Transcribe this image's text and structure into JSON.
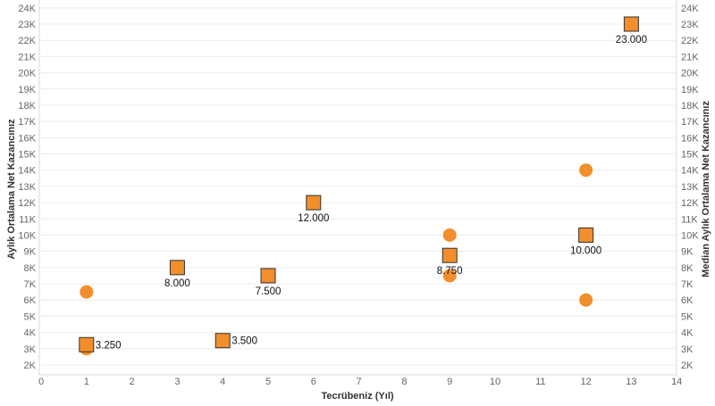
{
  "chart_data": {
    "type": "scatter",
    "xlabel": "Tecrübeniz (Yıl)",
    "ylabel_left": "Aylık Ortalama Net Kazancınız",
    "ylabel_right": "Median Aylık Ortalama Net Kazancınız",
    "xlim": [
      0,
      14
    ],
    "ylim": [
      1500,
      24000
    ],
    "x_ticks": [
      0,
      1,
      2,
      3,
      4,
      5,
      6,
      7,
      8,
      9,
      10,
      11,
      12,
      13,
      14
    ],
    "y_ticks": [
      {
        "value": 2000,
        "label": "2K"
      },
      {
        "value": 3000,
        "label": "3K"
      },
      {
        "value": 4000,
        "label": "4K"
      },
      {
        "value": 5000,
        "label": "5K"
      },
      {
        "value": 6000,
        "label": "6K"
      },
      {
        "value": 7000,
        "label": "7K"
      },
      {
        "value": 8000,
        "label": "8K"
      },
      {
        "value": 9000,
        "label": "9K"
      },
      {
        "value": 10000,
        "label": "10K"
      },
      {
        "value": 11000,
        "label": "11K"
      },
      {
        "value": 12000,
        "label": "12K"
      },
      {
        "value": 13000,
        "label": "13K"
      },
      {
        "value": 14000,
        "label": "14K"
      },
      {
        "value": 15000,
        "label": "15K"
      },
      {
        "value": 16000,
        "label": "16K"
      },
      {
        "value": 17000,
        "label": "17K"
      },
      {
        "value": 18000,
        "label": "18K"
      },
      {
        "value": 19000,
        "label": "19K"
      },
      {
        "value": 20000,
        "label": "20K"
      },
      {
        "value": 21000,
        "label": "21K"
      },
      {
        "value": 22000,
        "label": "22K"
      },
      {
        "value": 23000,
        "label": "23K"
      },
      {
        "value": 24000,
        "label": "24K"
      }
    ],
    "grid": true,
    "colors": {
      "marker": "#f28e2b",
      "marker_stroke": "#333333",
      "grid": "#ececec",
      "tick": "#666666"
    },
    "series": [
      {
        "marker": "circle",
        "points": [
          {
            "x": 1,
            "y": 6500
          },
          {
            "x": 1,
            "y": 3000
          },
          {
            "x": 9,
            "y": 10000
          },
          {
            "x": 9,
            "y": 7500
          },
          {
            "x": 12,
            "y": 14000
          },
          {
            "x": 12,
            "y": 6000
          }
        ]
      },
      {
        "marker": "square",
        "points": [
          {
            "x": 1,
            "y": 3250,
            "label": "3.250",
            "label_pos": "right"
          },
          {
            "x": 3,
            "y": 8000,
            "label": "8.000",
            "label_pos": "below"
          },
          {
            "x": 4,
            "y": 3500,
            "label": "3.500",
            "label_pos": "right"
          },
          {
            "x": 5,
            "y": 7500,
            "label": "7.500",
            "label_pos": "below"
          },
          {
            "x": 6,
            "y": 12000,
            "label": "12.000",
            "label_pos": "below"
          },
          {
            "x": 9,
            "y": 8750,
            "label": "8.750",
            "label_pos": "below"
          },
          {
            "x": 12,
            "y": 10000,
            "label": "10.000",
            "label_pos": "below"
          },
          {
            "x": 13,
            "y": 23000,
            "label": "23.000",
            "label_pos": "below"
          }
        ]
      }
    ]
  }
}
